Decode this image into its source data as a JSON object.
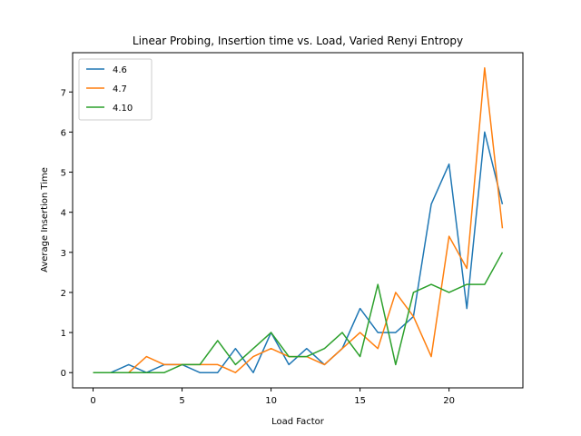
{
  "chart_data": {
    "type": "line",
    "title": "Linear Probing, Insertion time vs. Load, Varied Renyi Entropy",
    "xlabel": "Load Factor",
    "ylabel": "Average Insertion Time",
    "xlim": [
      -1.15,
      24.15
    ],
    "ylim": [
      -0.38,
      7.98
    ],
    "xticks": [
      0,
      5,
      10,
      15,
      20
    ],
    "yticks": [
      0,
      1,
      2,
      3,
      4,
      5,
      6,
      7
    ],
    "grid": false,
    "legend_position": "upper-left",
    "x": [
      0,
      1,
      2,
      3,
      4,
      5,
      6,
      7,
      8,
      9,
      10,
      11,
      12,
      13,
      14,
      15,
      16,
      17,
      18,
      19,
      20,
      21,
      22,
      23
    ],
    "series": [
      {
        "name": "4.6",
        "color": "#1f77b4",
        "values": [
          0,
          0,
          0.2,
          0,
          0.2,
          0.2,
          0,
          0,
          0.6,
          0,
          1.0,
          0.2,
          0.6,
          0.2,
          0.6,
          1.6,
          1.0,
          1.0,
          1.4,
          4.2,
          5.2,
          1.6,
          6.0,
          4.2
        ]
      },
      {
        "name": "4.7",
        "color": "#ff7f0e",
        "values": [
          0,
          0,
          0,
          0.4,
          0.2,
          0.2,
          0.2,
          0.2,
          0,
          0.4,
          0.6,
          0.4,
          0.4,
          0.2,
          0.6,
          1.0,
          0.6,
          2.0,
          1.4,
          0.4,
          3.4,
          2.6,
          7.6,
          3.6
        ]
      },
      {
        "name": "4.10",
        "color": "#2ca02c",
        "values": [
          0,
          0,
          0,
          0,
          0,
          0.2,
          0.2,
          0.8,
          0.2,
          0.6,
          1.0,
          0.4,
          0.4,
          0.6,
          1.0,
          0.4,
          2.2,
          0.2,
          2.0,
          2.2,
          2.0,
          2.2,
          2.2,
          3.0
        ]
      }
    ]
  }
}
